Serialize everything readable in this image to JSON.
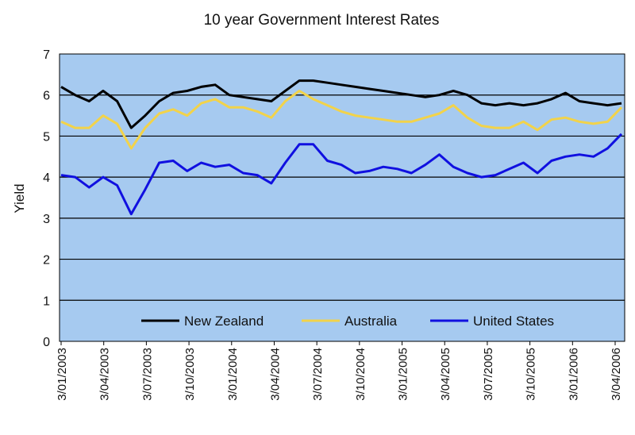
{
  "chart_data": {
    "type": "line",
    "title": "10 year Government Interest Rates",
    "xlabel": "",
    "ylabel": "Yield",
    "ylim": [
      0,
      7
    ],
    "yticks": [
      "0",
      "1",
      "2",
      "3",
      "4",
      "5",
      "6",
      "7"
    ],
    "grid": true,
    "legend_position": "bottom-inside",
    "plot_background": "#a6caf0",
    "x_tick_labels": [
      "3/01/2003",
      "3/04/2003",
      "3/07/2003",
      "3/10/2003",
      "3/01/2004",
      "3/04/2004",
      "3/07/2004",
      "3/10/2004",
      "3/01/2005",
      "3/04/2005",
      "3/07/2005",
      "3/10/2005",
      "3/01/2006",
      "3/04/2006"
    ],
    "x": [
      "2003-01",
      "2003-02",
      "2003-03",
      "2003-04",
      "2003-05",
      "2003-06",
      "2003-07",
      "2003-08",
      "2003-09",
      "2003-10",
      "2003-11",
      "2003-12",
      "2004-01",
      "2004-02",
      "2004-03",
      "2004-04",
      "2004-05",
      "2004-06",
      "2004-07",
      "2004-08",
      "2004-09",
      "2004-10",
      "2004-11",
      "2004-12",
      "2005-01",
      "2005-02",
      "2005-03",
      "2005-04",
      "2005-05",
      "2005-06",
      "2005-07",
      "2005-08",
      "2005-09",
      "2005-10",
      "2005-11",
      "2005-12",
      "2006-01",
      "2006-02",
      "2006-03",
      "2006-04",
      "2006-05"
    ],
    "series": [
      {
        "name": "New Zealand",
        "color": "#000000",
        "values": [
          6.2,
          6.0,
          5.85,
          6.1,
          5.85,
          5.2,
          5.5,
          5.85,
          6.05,
          6.1,
          6.2,
          6.25,
          6.0,
          5.95,
          5.9,
          5.85,
          6.1,
          6.35,
          6.35,
          6.3,
          6.25,
          6.2,
          6.15,
          6.1,
          6.05,
          6.0,
          5.95,
          6.0,
          6.1,
          6.0,
          5.8,
          5.75,
          5.8,
          5.75,
          5.8,
          5.9,
          6.05,
          5.85,
          5.8,
          5.75,
          5.8
        ]
      },
      {
        "name": "Australia",
        "color": "#f2d34a",
        "values": [
          5.35,
          5.2,
          5.2,
          5.5,
          5.3,
          4.7,
          5.2,
          5.55,
          5.65,
          5.5,
          5.8,
          5.9,
          5.7,
          5.7,
          5.6,
          5.45,
          5.85,
          6.1,
          5.9,
          5.75,
          5.6,
          5.5,
          5.45,
          5.4,
          5.35,
          5.35,
          5.45,
          5.55,
          5.75,
          5.45,
          5.25,
          5.2,
          5.2,
          5.35,
          5.15,
          5.4,
          5.45,
          5.35,
          5.3,
          5.35,
          5.7
        ]
      },
      {
        "name": "United States",
        "color": "#1010e0",
        "values": [
          4.05,
          4.0,
          3.75,
          4.0,
          3.8,
          3.1,
          3.7,
          4.35,
          4.4,
          4.15,
          4.35,
          4.25,
          4.3,
          4.1,
          4.05,
          3.85,
          4.35,
          4.8,
          4.8,
          4.4,
          4.3,
          4.1,
          4.15,
          4.25,
          4.2,
          4.1,
          4.3,
          4.55,
          4.25,
          4.1,
          4.0,
          4.05,
          4.2,
          4.35,
          4.1,
          4.4,
          4.5,
          4.55,
          4.5,
          4.7,
          5.05
        ]
      }
    ]
  }
}
